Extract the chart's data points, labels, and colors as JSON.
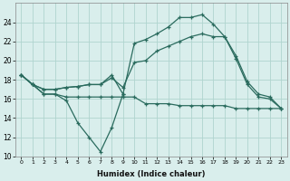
{
  "xlabel": "Humidex (Indice chaleur)",
  "x_values": [
    0,
    1,
    2,
    3,
    4,
    5,
    6,
    7,
    8,
    9,
    10,
    11,
    12,
    13,
    14,
    15,
    16,
    17,
    18,
    19,
    20,
    21,
    22,
    23
  ],
  "line_dip": {
    "x": [
      0,
      1,
      2,
      3,
      4,
      5,
      6,
      7,
      8,
      9
    ],
    "y": [
      18.5,
      17.5,
      16.5,
      16.5,
      15.8,
      13.5,
      12.0,
      10.5,
      13.0,
      16.5
    ]
  },
  "line_flat": {
    "x": [
      0,
      1,
      2,
      3,
      4,
      5,
      6,
      7,
      8,
      9,
      10,
      11,
      12,
      13,
      14,
      15,
      16,
      17,
      18,
      19,
      20,
      21,
      22,
      23
    ],
    "y": [
      18.5,
      17.5,
      16.5,
      16.5,
      16.2,
      16.2,
      16.2,
      16.2,
      16.2,
      16.2,
      16.2,
      15.5,
      15.5,
      15.5,
      15.3,
      15.3,
      15.3,
      15.3,
      15.3,
      15.0,
      15.0,
      15.0,
      15.0,
      15.0
    ]
  },
  "line_mid": {
    "x": [
      0,
      1,
      2,
      3,
      4,
      5,
      6,
      7,
      8,
      9,
      10,
      11,
      12,
      13,
      14,
      15,
      16,
      17,
      18,
      19,
      20,
      21,
      22,
      23
    ],
    "y": [
      18.5,
      17.5,
      17.0,
      17.0,
      17.2,
      17.3,
      17.5,
      17.5,
      18.2,
      17.2,
      19.8,
      20.0,
      21.0,
      21.5,
      22.0,
      22.5,
      22.8,
      22.5,
      22.5,
      20.2,
      17.5,
      16.2,
      16.0,
      15.0
    ]
  },
  "line_top": {
    "x": [
      0,
      1,
      2,
      3,
      4,
      5,
      6,
      7,
      8,
      9,
      10,
      11,
      12,
      13,
      14,
      15,
      16,
      17,
      18,
      19,
      20,
      21,
      22,
      23
    ],
    "y": [
      18.5,
      17.5,
      17.0,
      17.0,
      17.2,
      17.3,
      17.5,
      17.5,
      18.5,
      16.5,
      21.8,
      22.2,
      22.8,
      23.5,
      24.5,
      24.5,
      24.8,
      23.8,
      22.5,
      20.5,
      17.8,
      16.5,
      16.2,
      15.0
    ]
  },
  "bg_color": "#d9eeec",
  "grid_color": "#b0d4cf",
  "line_color": "#2a6b5e",
  "ylim": [
    10,
    26
  ],
  "yticks": [
    10,
    12,
    14,
    16,
    18,
    20,
    22,
    24
  ],
  "xlim": [
    -0.5,
    23.5
  ]
}
